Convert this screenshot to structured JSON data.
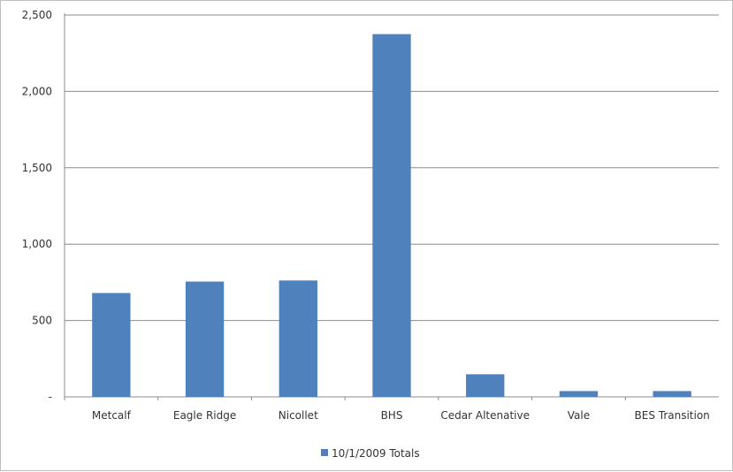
{
  "chart_data": {
    "type": "bar",
    "categories": [
      "Metcalf",
      "Eagle Ridge",
      "Nicollet",
      "BHS",
      "Cedar Altenative",
      "Vale",
      "BES Transition"
    ],
    "series": [
      {
        "name": "10/1/2009 Totals",
        "color": "#4f81bd",
        "values": [
          680,
          755,
          762,
          2375,
          148,
          38,
          38
        ]
      }
    ],
    "ylim": [
      0,
      2500
    ],
    "yticks": [
      0,
      500,
      1000,
      1500,
      2000,
      2500
    ],
    "ytick_labels": [
      "-",
      "500",
      "1,000",
      "1,500",
      "2,000",
      "2,500"
    ],
    "grid": true,
    "legend_position": "bottom",
    "title": "",
    "xlabel": "",
    "ylabel": ""
  }
}
